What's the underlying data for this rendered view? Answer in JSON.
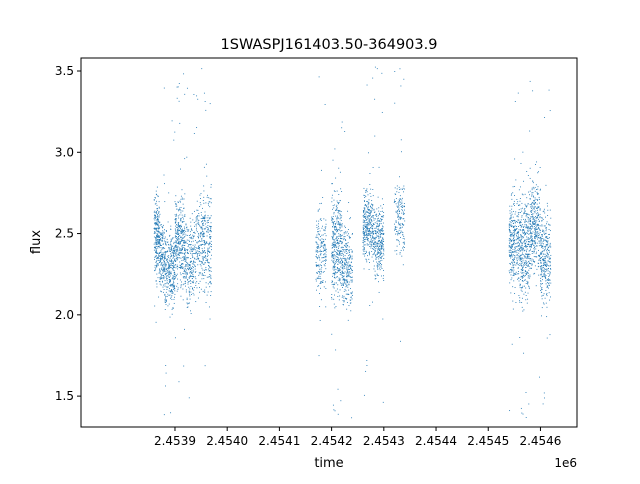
{
  "chart_data": {
    "type": "scatter",
    "title": "1SWASPJ161403.50-364903.9",
    "xlabel": "time",
    "ylabel": "flux",
    "x_offset_label": "1e6",
    "xlim": [
      2.45372,
      2.45467
    ],
    "ylim": [
      1.31,
      3.58
    ],
    "x_ticks": [
      2.4539,
      2.454,
      2.4541,
      2.4542,
      2.4543,
      2.4544,
      2.4545,
      2.4546
    ],
    "x_tick_labels": [
      "2.4539",
      "2.4540",
      "2.4541",
      "2.4542",
      "2.4543",
      "2.4544",
      "2.4545",
      "2.4546"
    ],
    "y_ticks": [
      1.5,
      2.0,
      2.5,
      3.0,
      3.5
    ],
    "y_tick_labels": [
      "1.5",
      "2.0",
      "2.5",
      "3.0",
      "3.5"
    ],
    "grid": false,
    "legend": "none",
    "point_color": "#1f77b4",
    "series": [
      {
        "clusters": [
          {
            "x_start": 2.45386,
            "x_end": 2.45387,
            "y_center": 2.5,
            "y_spread": 0.16,
            "count": 220
          },
          {
            "x_start": 2.45387,
            "x_end": 2.45388,
            "y_center": 2.35,
            "y_spread": 0.15,
            "count": 170
          },
          {
            "x_start": 2.45388,
            "x_end": 2.4539,
            "y_center": 2.28,
            "y_spread": 0.17,
            "count": 320
          },
          {
            "x_start": 2.4539,
            "x_end": 2.45392,
            "y_center": 2.45,
            "y_spread": 0.2,
            "count": 360
          },
          {
            "x_start": 2.45392,
            "x_end": 2.45394,
            "y_center": 2.32,
            "y_spread": 0.18,
            "count": 240
          },
          {
            "x_start": 2.45394,
            "x_end": 2.45397,
            "y_center": 2.45,
            "y_spread": 0.22,
            "count": 360
          },
          {
            "x_start": 2.45417,
            "x_end": 2.45419,
            "y_center": 2.38,
            "y_spread": 0.18,
            "count": 200
          },
          {
            "x_start": 2.4542,
            "x_end": 2.45422,
            "y_center": 2.42,
            "y_spread": 0.22,
            "count": 380
          },
          {
            "x_start": 2.45422,
            "x_end": 2.45424,
            "y_center": 2.3,
            "y_spread": 0.18,
            "count": 260
          },
          {
            "x_start": 2.45426,
            "x_end": 2.45428,
            "y_center": 2.55,
            "y_spread": 0.15,
            "count": 320
          },
          {
            "x_start": 2.45428,
            "x_end": 2.4543,
            "y_center": 2.45,
            "y_spread": 0.15,
            "count": 300
          },
          {
            "x_start": 2.45432,
            "x_end": 2.45434,
            "y_center": 2.6,
            "y_spread": 0.16,
            "count": 160
          },
          {
            "x_start": 2.45454,
            "x_end": 2.45456,
            "y_center": 2.45,
            "y_spread": 0.2,
            "count": 320
          },
          {
            "x_start": 2.45456,
            "x_end": 2.45458,
            "y_center": 2.4,
            "y_spread": 0.22,
            "count": 360
          },
          {
            "x_start": 2.45458,
            "x_end": 2.4546,
            "y_center": 2.55,
            "y_spread": 0.2,
            "count": 320
          },
          {
            "x_start": 2.4546,
            "x_end": 2.45462,
            "y_center": 2.35,
            "y_spread": 0.2,
            "count": 300
          }
        ]
      }
    ]
  }
}
